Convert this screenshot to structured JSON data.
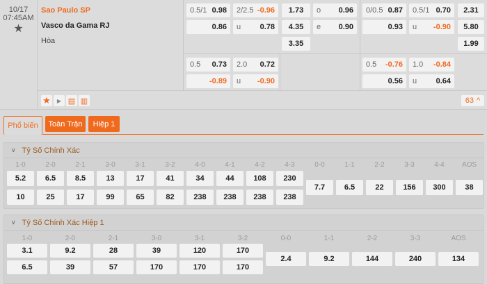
{
  "match": {
    "date": "10/17",
    "time": "07:45AM",
    "home": "Sao Paulo SP",
    "away": "Vasco da Gama RJ",
    "draw": "Hòa",
    "more_count": "63"
  },
  "odds": {
    "handicap_ft": [
      {
        "line": "0.5/1",
        "price": "0.98"
      },
      {
        "line": "",
        "price": "0.86"
      }
    ],
    "ou_ft": [
      {
        "line": "2/2.5",
        "price": "-0.96"
      },
      {
        "line": "u",
        "price": "0.78"
      }
    ],
    "x12_ft": [
      "1.73",
      "4.35",
      "3.35"
    ],
    "oe_ft": [
      {
        "line": "o",
        "price": "0.96"
      },
      {
        "line": "e",
        "price": "0.90"
      }
    ],
    "handicap_1h": [
      {
        "line": "0/0.5",
        "price": "0.87"
      },
      {
        "line": "",
        "price": "0.93"
      }
    ],
    "ou_1h": [
      {
        "line": "0.5/1",
        "price": "0.70"
      },
      {
        "line": "u",
        "price": "-0.90"
      }
    ],
    "x12_1h": [
      "2.31",
      "5.80",
      "1.99"
    ],
    "handicap_ft_alt": [
      {
        "line": "0.5",
        "price": "0.73"
      },
      {
        "line": "",
        "price": "-0.89"
      }
    ],
    "ou_ft_alt": [
      {
        "line": "2.0",
        "price": "0.72"
      },
      {
        "line": "u",
        "price": "-0.90"
      }
    ],
    "handicap_1h_alt": [
      {
        "line": "0.5",
        "price": "-0.76"
      },
      {
        "line": "",
        "price": "0.56"
      }
    ],
    "ou_1h_alt": [
      {
        "line": "1.0",
        "price": "-0.84"
      },
      {
        "line": "u",
        "price": "0.64"
      }
    ]
  },
  "tabs": [
    "Phổ biến",
    "Toàn Trận",
    "Hiệp 1"
  ],
  "sections": [
    {
      "title": "Tỷ Số Chính Xác",
      "pairs": [
        [
          "1-0",
          "5.2",
          "10"
        ],
        [
          "2-0",
          "6.5",
          "25"
        ],
        [
          "2-1",
          "8.5",
          "17"
        ],
        [
          "3-0",
          "13",
          "99"
        ],
        [
          "3-1",
          "17",
          "65"
        ],
        [
          "3-2",
          "41",
          "82"
        ],
        [
          "4-0",
          "34",
          "238"
        ],
        [
          "4-1",
          "44",
          "238"
        ],
        [
          "4-2",
          "108",
          "238"
        ],
        [
          "4-3",
          "230",
          "238"
        ]
      ],
      "singles": [
        [
          "0-0",
          "7.7"
        ],
        [
          "1-1",
          "6.5"
        ],
        [
          "2-2",
          "22"
        ],
        [
          "3-3",
          "156"
        ],
        [
          "4-4",
          "300"
        ],
        [
          "AOS",
          "38"
        ]
      ]
    },
    {
      "title": "Tỷ Số Chính Xác Hiệp 1",
      "pairs": [
        [
          "1-0",
          "3.1",
          "6.5"
        ],
        [
          "2-0",
          "9.2",
          "39"
        ],
        [
          "2-1",
          "28",
          "57"
        ],
        [
          "3-0",
          "39",
          "170"
        ],
        [
          "3-1",
          "120",
          "170"
        ],
        [
          "3-2",
          "170",
          "170"
        ]
      ],
      "singles": [
        [
          "0-0",
          "2.4"
        ],
        [
          "1-1",
          "9.2"
        ],
        [
          "2-2",
          "144"
        ],
        [
          "3-3",
          "240"
        ],
        [
          "AOS",
          "134"
        ]
      ]
    }
  ],
  "colors": {
    "accent": "#f06a1e",
    "negative": "#f06a1e",
    "section_title": "#9b5a20"
  }
}
